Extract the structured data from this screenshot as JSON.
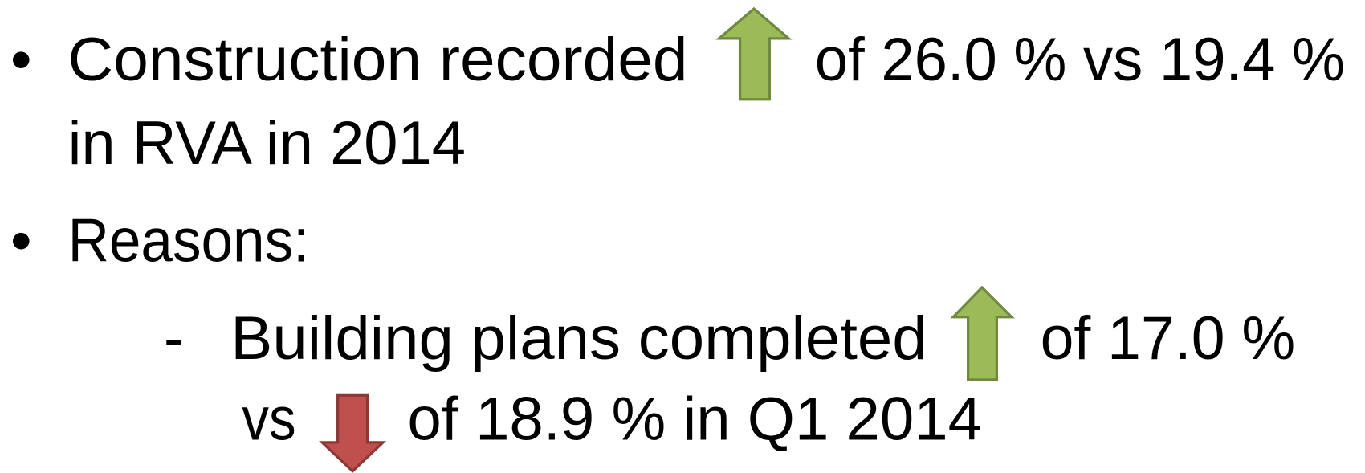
{
  "items": [
    {
      "marker": "•",
      "segments": [
        "Construction recorded",
        "of 26.0 % vs 19.4 %",
        "in RVA in 2014"
      ]
    },
    {
      "marker": "•",
      "segments": [
        "Reasons:"
      ]
    },
    {
      "marker": "-",
      "segments": [
        "Building plans completed",
        "of 17.0 %",
        "vs",
        "of 18.9 % in Q1 2014"
      ]
    }
  ]
}
